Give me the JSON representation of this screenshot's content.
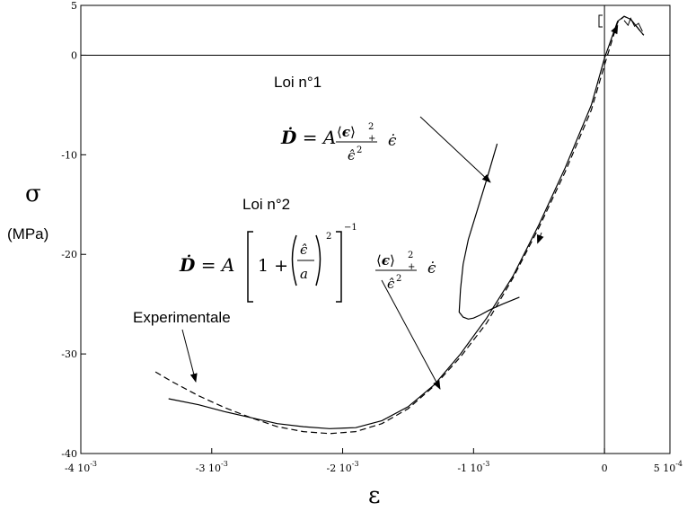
{
  "chart_data": {
    "type": "line",
    "ylabel_symbol": "σ",
    "ylabel_unit": "(MPa)",
    "xlabel_symbol": "ε",
    "xlim": [
      -0.004,
      0.0005
    ],
    "ylim": [
      -40,
      5
    ],
    "x_ticks": [
      {
        "value": -0.004,
        "base": "-4 10",
        "exp": "-3"
      },
      {
        "value": -0.003,
        "base": "-3 10",
        "exp": "-3"
      },
      {
        "value": -0.002,
        "base": "-2 10",
        "exp": "-3"
      },
      {
        "value": -0.001,
        "base": "-1 10",
        "exp": "-3"
      },
      {
        "value": 0,
        "base": "0",
        "exp": ""
      },
      {
        "value": 0.0005,
        "base": "5 10",
        "exp": "-4"
      }
    ],
    "y_ticks": [
      {
        "value": 5,
        "label": "5"
      },
      {
        "value": 0,
        "label": "0"
      },
      {
        "value": -10,
        "label": "-10"
      },
      {
        "value": -20,
        "label": "-20"
      },
      {
        "value": -30,
        "label": "-30"
      },
      {
        "value": -40,
        "label": "-40"
      }
    ],
    "grid": false,
    "annotations": [
      {
        "text": "Loi n°1"
      },
      {
        "text": "Loi n°2"
      },
      {
        "text": "Experimentale"
      }
    ],
    "series": [
      {
        "style": "dashed",
        "x": [
          -0.00343,
          -0.0033,
          -0.0031,
          -0.0029,
          -0.0027,
          -0.0025,
          -0.0023,
          -0.0021,
          -0.0019,
          -0.0017,
          -0.0015,
          -0.0013,
          -0.0011,
          -0.0009,
          -0.0007,
          -0.0005,
          -0.0003,
          -0.0001,
          0,
          0.0001,
          0.00015,
          0.0002,
          0.00025,
          0.0003
        ],
        "y": [
          -31.8,
          -32.8,
          -34.2,
          -35.4,
          -36.4,
          -37.3,
          -37.8,
          -38.0,
          -37.8,
          -37.0,
          -35.5,
          -33.2,
          -30.3,
          -26.9,
          -22.4,
          -17.3,
          -11.7,
          -5.5,
          -1.0,
          3.3,
          3.9,
          3.6,
          2.8,
          2.0
        ]
      },
      {
        "style": "solid",
        "x": [
          -0.00333,
          -0.0031,
          -0.0029,
          -0.0027,
          -0.0025,
          -0.0023,
          -0.0021,
          -0.0019,
          -0.0017,
          -0.0015,
          -0.0013,
          -0.0011,
          -0.0009,
          -0.0007,
          -0.0005,
          -0.0003,
          -0.0001,
          0,
          0.0001,
          0.00015,
          0.0002,
          0.00025,
          0.0003
        ],
        "y": [
          -34.5,
          -35.1,
          -35.8,
          -36.4,
          -37.0,
          -37.3,
          -37.5,
          -37.4,
          -36.7,
          -35.3,
          -33.1,
          -30.0,
          -26.4,
          -22.2,
          -17.0,
          -11.3,
          -5.0,
          -0.3,
          3.4,
          3.9,
          3.6,
          2.8,
          2.0
        ]
      },
      {
        "style": "solid",
        "x": [
          -0.00082,
          -0.0009,
          -0.00097,
          -0.00104,
          -0.00108,
          -0.0011,
          -0.00111,
          -0.00108,
          -0.00104,
          -0.001,
          -0.00095,
          -0.00088,
          -0.00078,
          -0.00065
        ],
        "y": [
          -8.9,
          -12.5,
          -15.5,
          -18.5,
          -21.0,
          -23.5,
          -25.8,
          -26.3,
          -26.5,
          -26.4,
          -26.1,
          -25.6,
          -25.0,
          -24.3
        ]
      }
    ]
  }
}
